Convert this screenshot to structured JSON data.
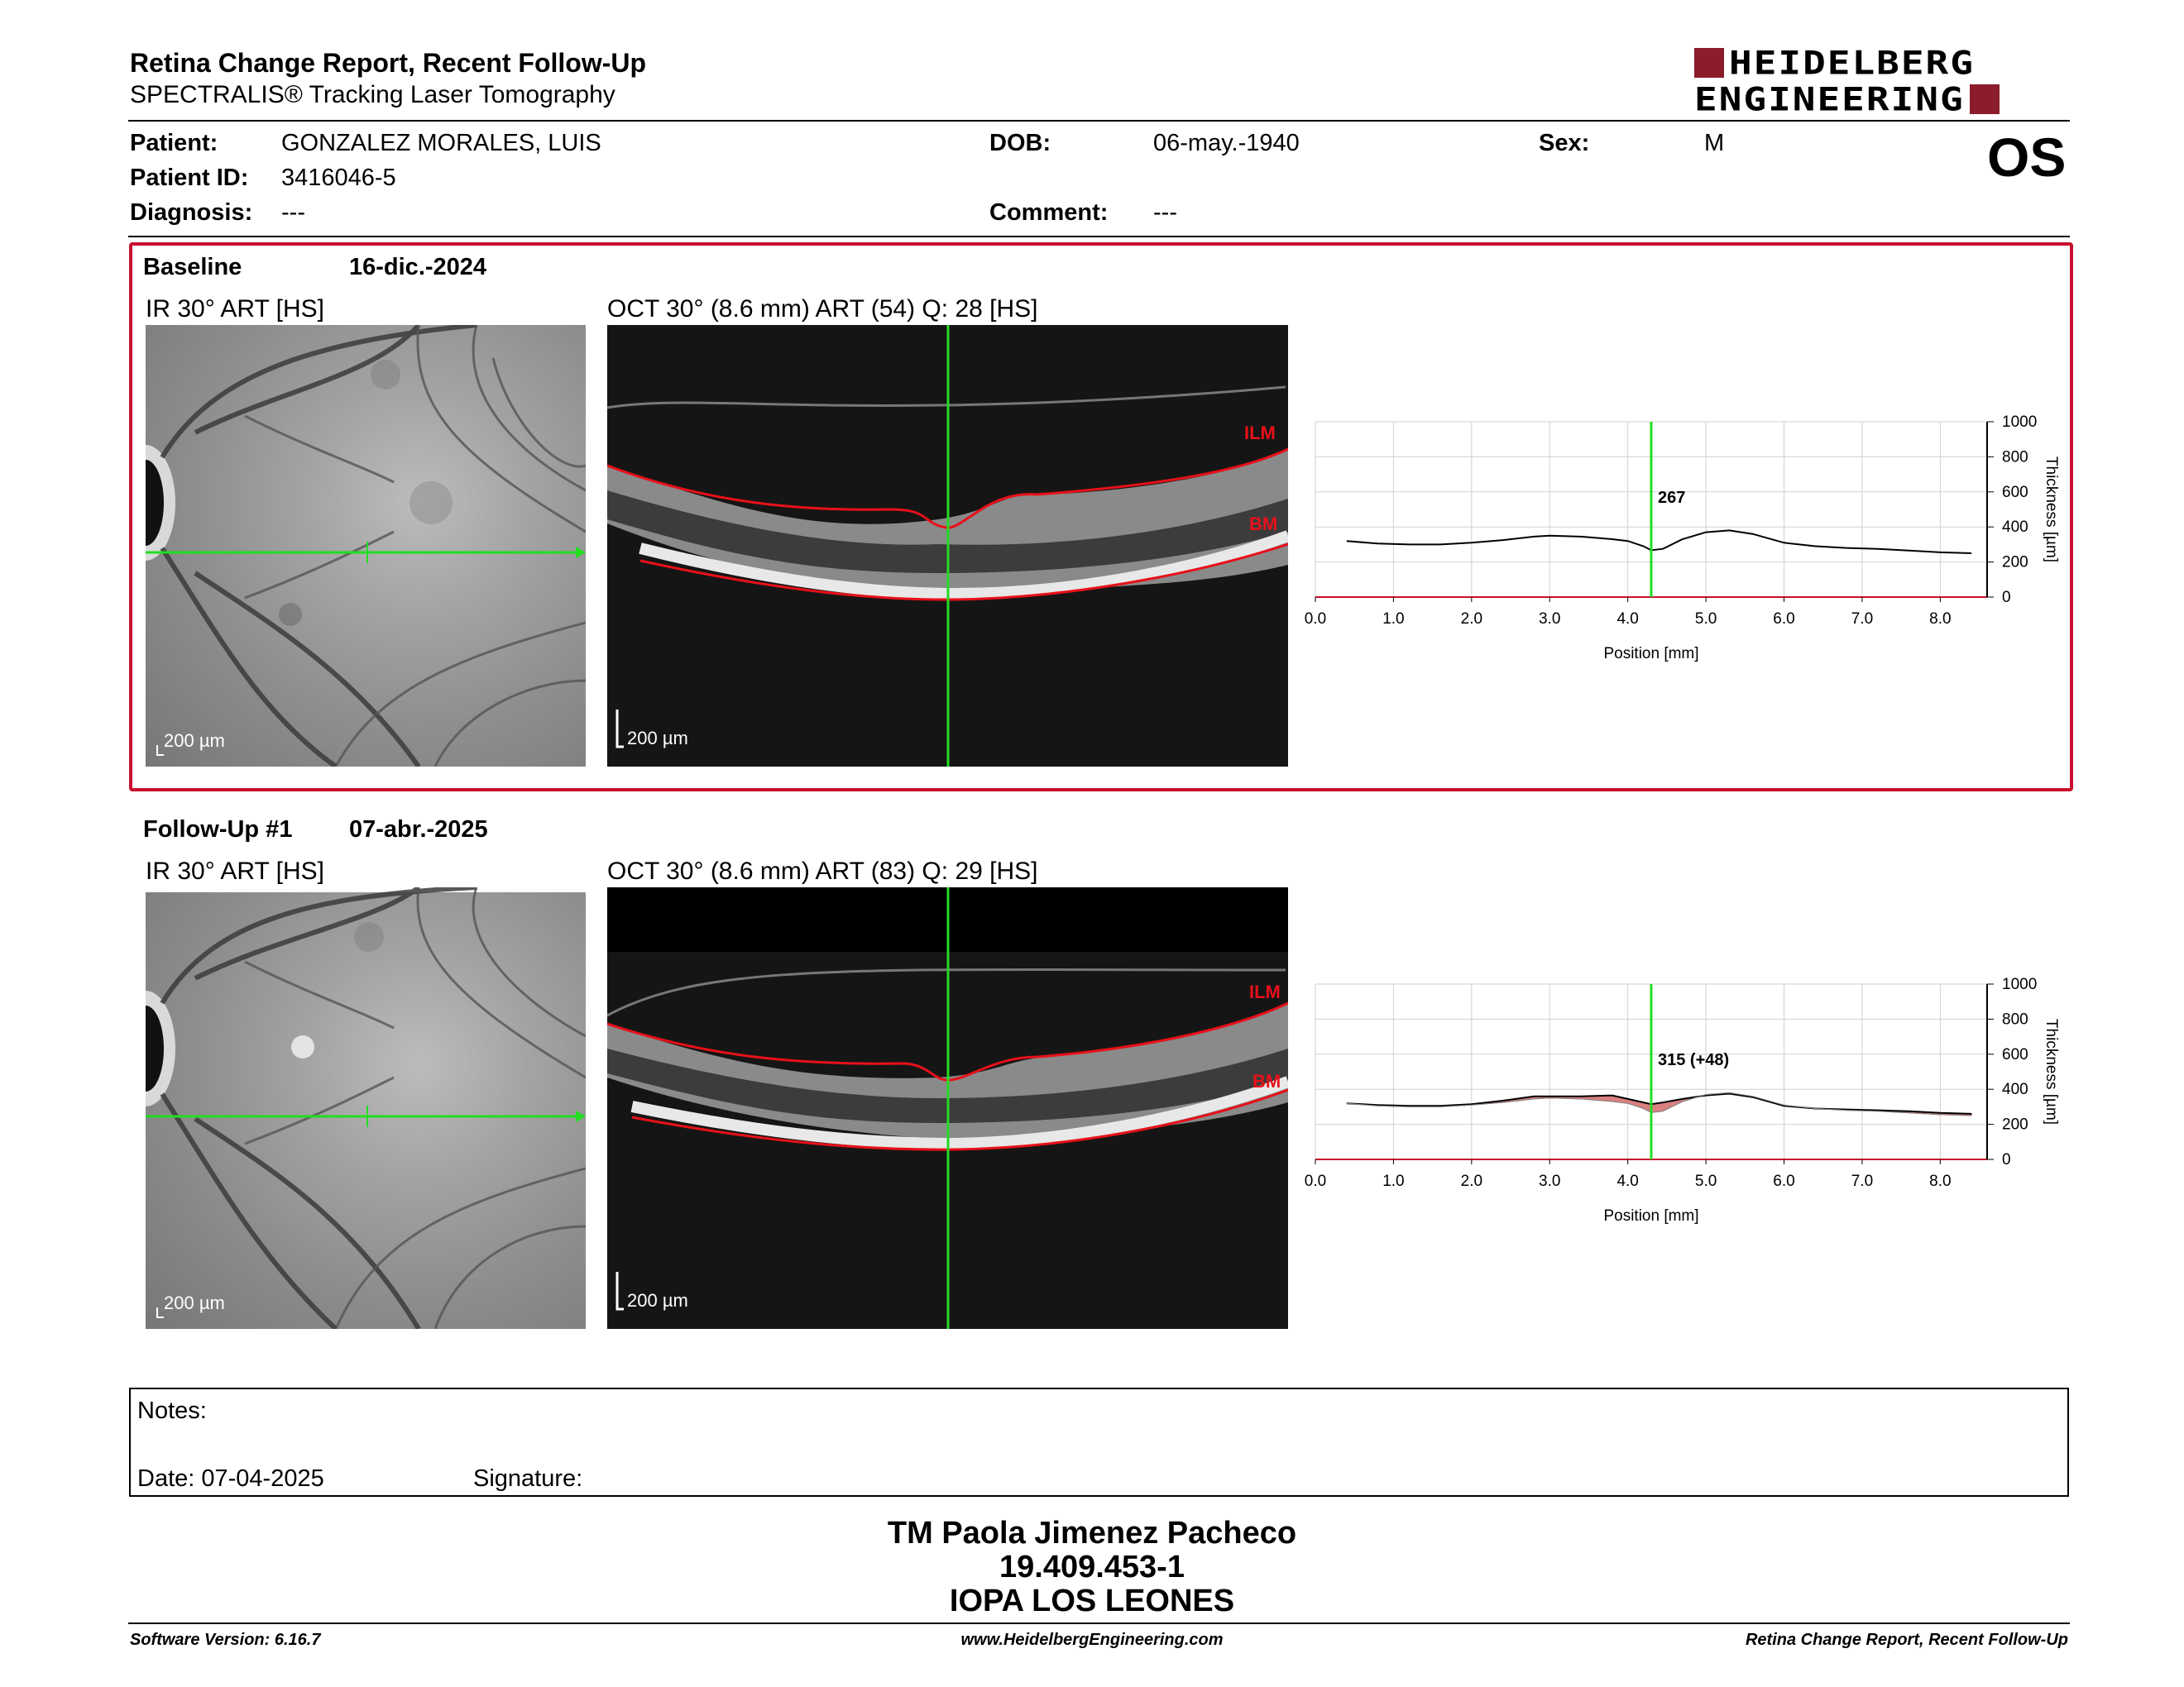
{
  "header": {
    "title": "Retina Change Report, Recent Follow-Up",
    "subtitle": "SPECTRALIS® Tracking Laser Tomography",
    "logo_line1": "HEIDELBERG",
    "logo_line2": "ENGINEERING",
    "eye": "OS"
  },
  "patient": {
    "patient_label": "Patient:",
    "patient_value": "GONZALEZ MORALES, LUIS",
    "id_label": "Patient ID:",
    "id_value": "3416046-5",
    "diagnosis_label": "Diagnosis:",
    "diagnosis_value": "---",
    "dob_label": "DOB:",
    "dob_value": "06-may.-1940",
    "comment_label": "Comment:",
    "comment_value": "---",
    "sex_label": "Sex:",
    "sex_value": "M"
  },
  "baseline": {
    "label": "Baseline",
    "date": "16-dic.-2024",
    "ir_caption": "IR 30° ART [HS]",
    "oct_caption": "OCT 30° (8.6 mm) ART (54) Q: 28 [HS]",
    "scale_ir": "200 µm",
    "scale_oct": "200 µm",
    "ilm": "ILM",
    "bm": "BM"
  },
  "followup": {
    "label": "Follow-Up #1",
    "date": "07-abr.-2025",
    "ir_caption": "IR 30° ART [HS]",
    "oct_caption": "OCT 30° (8.6 mm) ART (83) Q: 29 [HS]",
    "scale_ir": "200 µm",
    "scale_oct": "200 µm",
    "ilm": "ILM",
    "bm": "BM"
  },
  "chart_data": [
    {
      "type": "line",
      "name": "baseline-thickness",
      "xlabel": "Position [mm]",
      "ylabel": "Thickness [µm]",
      "xlim": [
        0,
        8.6
      ],
      "ylim": [
        0,
        1000
      ],
      "x_ticks": [
        "0.0",
        "1.0",
        "2.0",
        "3.0",
        "4.0",
        "5.0",
        "6.0",
        "7.0",
        "8.0"
      ],
      "y_ticks": [
        "0",
        "200",
        "400",
        "600",
        "800",
        "1000"
      ],
      "marker_x": 4.3,
      "marker_label": "267",
      "series": [
        {
          "x": [
            0.4,
            0.8,
            1.2,
            1.6,
            2.0,
            2.4,
            2.8,
            3.0,
            3.4,
            3.8,
            4.0,
            4.2,
            4.3,
            4.45,
            4.7,
            5.0,
            5.3,
            5.6,
            6.0,
            6.4,
            6.8,
            7.2,
            7.6,
            8.0,
            8.4
          ],
          "y": [
            320,
            305,
            300,
            300,
            310,
            325,
            345,
            350,
            345,
            330,
            320,
            290,
            267,
            275,
            330,
            370,
            380,
            360,
            310,
            290,
            280,
            275,
            265,
            255,
            250
          ]
        }
      ]
    },
    {
      "type": "line",
      "name": "followup-thickness",
      "xlabel": "Position [mm]",
      "ylabel": "Thickness [µm]",
      "xlim": [
        0,
        8.6
      ],
      "ylim": [
        0,
        1000
      ],
      "x_ticks": [
        "0.0",
        "1.0",
        "2.0",
        "3.0",
        "4.0",
        "5.0",
        "6.0",
        "7.0",
        "8.0"
      ],
      "y_ticks": [
        "0",
        "200",
        "400",
        "600",
        "800",
        "1000"
      ],
      "marker_x": 4.3,
      "marker_label": "315 (+48)",
      "series": [
        {
          "x": [
            0.4,
            0.8,
            1.2,
            1.6,
            2.0,
            2.4,
            2.8,
            3.0,
            3.4,
            3.8,
            4.0,
            4.2,
            4.3,
            4.45,
            4.7,
            5.0,
            5.3,
            5.6,
            6.0,
            6.4,
            6.8,
            7.2,
            7.6,
            8.0,
            8.4
          ],
          "y": [
            320,
            310,
            305,
            305,
            315,
            335,
            360,
            360,
            360,
            365,
            345,
            325,
            315,
            325,
            345,
            365,
            375,
            355,
            305,
            290,
            285,
            280,
            275,
            265,
            260
          ]
        },
        {
          "x": [
            0.4,
            0.8,
            1.2,
            1.6,
            2.0,
            2.4,
            2.8,
            3.0,
            3.4,
            3.8,
            4.0,
            4.2,
            4.3,
            4.45,
            4.7,
            5.0,
            5.3,
            5.6,
            6.0,
            6.4,
            6.8,
            7.2,
            7.6,
            8.0,
            8.4
          ],
          "y": [
            320,
            305,
            300,
            300,
            310,
            325,
            345,
            350,
            345,
            330,
            320,
            290,
            267,
            275,
            330,
            370,
            380,
            360,
            310,
            290,
            280,
            275,
            265,
            255,
            250
          ]
        }
      ]
    }
  ],
  "notes": {
    "notes_label": "Notes:",
    "date_label": "Date: 07-04-2025",
    "signature_label": "Signature:"
  },
  "operator": {
    "name": "TM Paola Jimenez Pacheco",
    "rut": "19.409.453-1",
    "center": "IOPA LOS LEONES"
  },
  "footer": {
    "version": "Software Version: 6.16.7",
    "website": "www.HeidelbergEngineering.com",
    "report": "Retina Change Report, Recent Follow-Up"
  },
  "colors": {
    "frame": "#c8102e",
    "scan_line": "#22dd22",
    "layer_line": "#e8101a",
    "logo": "#8c1c2c",
    "diff_fill": "#d98080"
  }
}
